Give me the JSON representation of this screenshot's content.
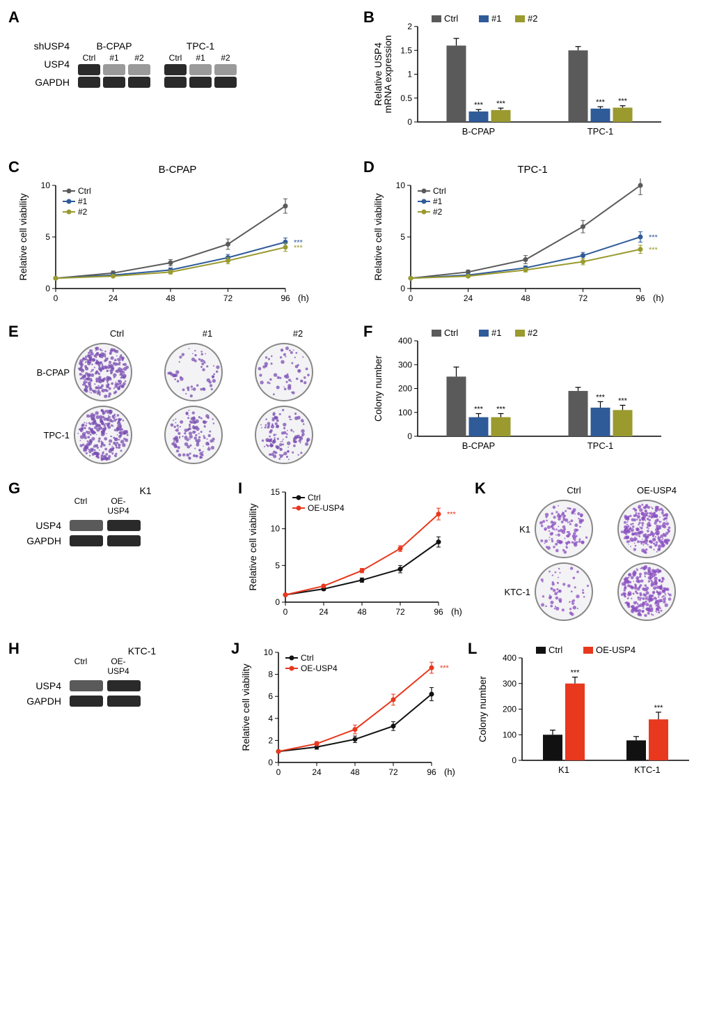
{
  "colors": {
    "ctrl_gray": "#5a5a5a",
    "sh1_blue": "#2f5b99",
    "sh2_olive": "#9a9a2f",
    "oe_red": "#e8381e",
    "ctrl_black": "#111111",
    "bg": "#ffffff"
  },
  "panelA": {
    "label": "A",
    "cell_lines": [
      "B-CPAP",
      "TPC-1"
    ],
    "header": "shUSP4",
    "lanes": [
      "Ctrl",
      "#1",
      "#2"
    ],
    "rows": [
      "USP4",
      "GAPDH"
    ],
    "band_intensity": {
      "B-CPAP": {
        "USP4": [
          "strong",
          "weak",
          "weak"
        ],
        "GAPDH": [
          "strong",
          "strong",
          "strong"
        ]
      },
      "TPC-1": {
        "USP4": [
          "strong",
          "weak",
          "weak"
        ],
        "GAPDH": [
          "strong",
          "strong",
          "strong"
        ]
      }
    }
  },
  "panelB": {
    "label": "B",
    "type": "bar",
    "ylabel": "Relative USP4\nmRNA expression",
    "groups": [
      "B-CPAP",
      "TPC-1"
    ],
    "series": [
      "Ctrl",
      "#1",
      "#2"
    ],
    "series_colors": [
      "#5a5a5a",
      "#2f5b99",
      "#9a9a2f"
    ],
    "values": {
      "B-CPAP": [
        1.6,
        0.22,
        0.25
      ],
      "TPC-1": [
        1.5,
        0.28,
        0.3
      ]
    },
    "errors": {
      "B-CPAP": [
        0.15,
        0.04,
        0.04
      ],
      "TPC-1": [
        0.08,
        0.04,
        0.04
      ]
    },
    "sig": {
      "B-CPAP": [
        "",
        "***",
        "***"
      ],
      "TPC-1": [
        "",
        "***",
        "***"
      ]
    },
    "ylim": [
      0,
      2.0
    ],
    "yticks": [
      0,
      0.5,
      1.0,
      1.5,
      2.0
    ]
  },
  "panelC": {
    "label": "C",
    "title": "B-CPAP",
    "type": "line",
    "xlabel": "(h)",
    "ylabel": "Relative cell viability",
    "x": [
      0,
      24,
      48,
      72,
      96
    ],
    "series": [
      "Ctrl",
      "#1",
      "#2"
    ],
    "series_colors": [
      "#5a5a5a",
      "#2f5b99",
      "#9a9a2f"
    ],
    "y": {
      "Ctrl": [
        1,
        1.5,
        2.5,
        4.3,
        8.0
      ],
      "#1": [
        1,
        1.3,
        1.8,
        3.0,
        4.5
      ],
      "#2": [
        1,
        1.2,
        1.6,
        2.7,
        4.0
      ]
    },
    "err": {
      "Ctrl": [
        0,
        0.2,
        0.3,
        0.5,
        0.7
      ],
      "#1": [
        0,
        0.1,
        0.2,
        0.3,
        0.4
      ],
      "#2": [
        0,
        0.1,
        0.2,
        0.3,
        0.4
      ]
    },
    "ylim": [
      0,
      10
    ],
    "yticks": [
      0,
      5,
      10
    ],
    "sig": {
      "#1": "***",
      "#2": "***"
    }
  },
  "panelD": {
    "label": "D",
    "title": "TPC-1",
    "type": "line",
    "xlabel": "(h)",
    "ylabel": "Relative cell viability",
    "x": [
      0,
      24,
      48,
      72,
      96
    ],
    "series": [
      "Ctrl",
      "#1",
      "#2"
    ],
    "series_colors": [
      "#5a5a5a",
      "#2f5b99",
      "#9a9a2f"
    ],
    "y": {
      "Ctrl": [
        1,
        1.6,
        2.8,
        6.0,
        10.0
      ],
      "#1": [
        1,
        1.3,
        2.0,
        3.2,
        5.0
      ],
      "#2": [
        1,
        1.2,
        1.8,
        2.6,
        3.8
      ]
    },
    "err": {
      "Ctrl": [
        0,
        0.2,
        0.4,
        0.6,
        0.9
      ],
      "#1": [
        0,
        0.1,
        0.2,
        0.3,
        0.5
      ],
      "#2": [
        0,
        0.1,
        0.2,
        0.3,
        0.4
      ]
    },
    "ylim": [
      0,
      10
    ],
    "yticks": [
      0,
      5,
      10
    ],
    "sig": {
      "#1": "***",
      "#2": "***"
    }
  },
  "panelE": {
    "label": "E",
    "cols": [
      "Ctrl",
      "#1",
      "#2"
    ],
    "rows": [
      "B-CPAP",
      "TPC-1"
    ],
    "density": {
      "B-CPAP": [
        "high",
        "low",
        "low"
      ],
      "TPC-1": [
        "high",
        "med",
        "med"
      ]
    },
    "plate_color": "#7a4fb3"
  },
  "panelF": {
    "label": "F",
    "type": "bar",
    "ylabel": "Colony number",
    "groups": [
      "B-CPAP",
      "TPC-1"
    ],
    "series": [
      "Ctrl",
      "#1",
      "#2"
    ],
    "series_colors": [
      "#5a5a5a",
      "#2f5b99",
      "#9a9a2f"
    ],
    "values": {
      "B-CPAP": [
        250,
        80,
        80
      ],
      "TPC-1": [
        190,
        120,
        110
      ]
    },
    "errors": {
      "B-CPAP": [
        40,
        15,
        15
      ],
      "TPC-1": [
        15,
        25,
        20
      ]
    },
    "sig": {
      "B-CPAP": [
        "",
        "***",
        "***"
      ],
      "TPC-1": [
        "",
        "***",
        "***"
      ]
    },
    "ylim": [
      0,
      400
    ],
    "yticks": [
      0,
      100,
      200,
      300,
      400
    ]
  },
  "panelG": {
    "label": "G",
    "cell_line": "K1",
    "lanes": [
      "Ctrl",
      "OE-USP4"
    ],
    "rows": [
      "USP4",
      "GAPDH"
    ],
    "band_intensity": {
      "USP4": [
        "med",
        "strong"
      ],
      "GAPDH": [
        "strong",
        "strong"
      ]
    }
  },
  "panelH": {
    "label": "H",
    "cell_line": "KTC-1",
    "lanes": [
      "Ctrl",
      "OE-USP4"
    ],
    "rows": [
      "USP4",
      "GAPDH"
    ],
    "band_intensity": {
      "USP4": [
        "med",
        "strong"
      ],
      "GAPDH": [
        "strong",
        "strong"
      ]
    }
  },
  "panelI": {
    "label": "I",
    "type": "line",
    "xlabel": "(h)",
    "ylabel": "Relative cell viability",
    "x": [
      0,
      24,
      48,
      72,
      96
    ],
    "series": [
      "Ctrl",
      "OE-USP4"
    ],
    "series_colors": [
      "#111111",
      "#e8381e"
    ],
    "y": {
      "Ctrl": [
        1,
        1.8,
        3.0,
        4.5,
        8.2
      ],
      "OE-USP4": [
        1,
        2.2,
        4.3,
        7.3,
        12.0
      ]
    },
    "err": {
      "Ctrl": [
        0,
        0.2,
        0.3,
        0.5,
        0.7
      ],
      "OE-USP4": [
        0,
        0.2,
        0.3,
        0.4,
        0.8
      ]
    },
    "ylim": [
      0,
      15
    ],
    "yticks": [
      0,
      5,
      10,
      15
    ],
    "sig": {
      "OE-USP4": "***"
    }
  },
  "panelJ": {
    "label": "J",
    "type": "line",
    "xlabel": "(h)",
    "ylabel": "Relative cell viability",
    "x": [
      0,
      24,
      48,
      72,
      96
    ],
    "series": [
      "Ctrl",
      "OE-USP4"
    ],
    "series_colors": [
      "#111111",
      "#e8381e"
    ],
    "y": {
      "Ctrl": [
        1,
        1.4,
        2.1,
        3.3,
        6.2
      ],
      "OE-USP4": [
        1,
        1.7,
        3.0,
        5.7,
        8.6
      ]
    },
    "err": {
      "Ctrl": [
        0,
        0.2,
        0.3,
        0.4,
        0.6
      ],
      "OE-USP4": [
        0,
        0.2,
        0.4,
        0.5,
        0.5
      ]
    },
    "ylim": [
      0,
      10
    ],
    "yticks": [
      0,
      2,
      4,
      6,
      8,
      10
    ],
    "sig": {
      "OE-USP4": "***"
    }
  },
  "panelK": {
    "label": "K",
    "cols": [
      "Ctrl",
      "OE-USP4"
    ],
    "rows": [
      "K1",
      "KTC-1"
    ],
    "density": {
      "K1": [
        "med",
        "high"
      ],
      "KTC-1": [
        "low",
        "high"
      ]
    },
    "plate_color": "#8a4fc0"
  },
  "panelL": {
    "label": "L",
    "type": "bar",
    "ylabel": "Colony number",
    "groups": [
      "K1",
      "KTC-1"
    ],
    "series": [
      "Ctrl",
      "OE-USP4"
    ],
    "series_colors": [
      "#111111",
      "#e8381e"
    ],
    "values": {
      "K1": [
        100,
        300
      ],
      "KTC-1": [
        78,
        160
      ]
    },
    "errors": {
      "K1": [
        18,
        25
      ],
      "KTC-1": [
        15,
        28
      ]
    },
    "sig": {
      "K1": [
        "",
        "***"
      ],
      "KTC-1": [
        "",
        "***"
      ]
    },
    "ylim": [
      0,
      400
    ],
    "yticks": [
      0,
      100,
      200,
      300,
      400
    ]
  }
}
